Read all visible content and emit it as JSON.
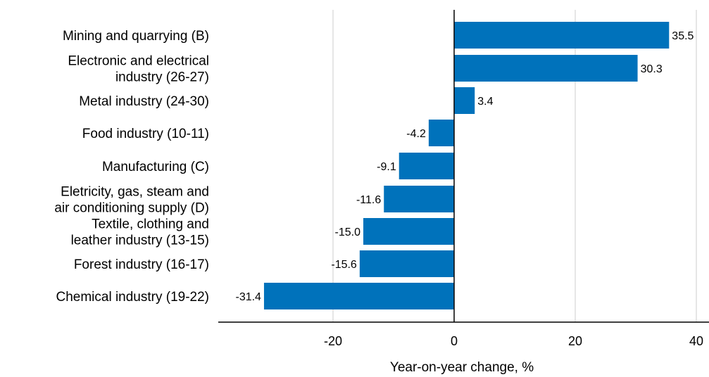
{
  "chart_data": {
    "type": "bar",
    "orientation": "horizontal",
    "categories": [
      [
        "Mining and quarrying (B)"
      ],
      [
        "Electronic and electrical",
        "industry (26-27)"
      ],
      [
        "Metal industry (24-30)"
      ],
      [
        "Food industry (10-11)"
      ],
      [
        "Manufacturing (C)"
      ],
      [
        "Eletricity, gas, steam and",
        "air conditioning supply (D)"
      ],
      [
        "Textile, clothing and",
        "leather industry (13-15)"
      ],
      [
        "Forest industry (16-17)"
      ],
      [
        "Chemical industry (19-22)"
      ]
    ],
    "values": [
      35.5,
      30.3,
      3.4,
      -4.2,
      -9.1,
      -11.6,
      -15.0,
      -15.6,
      -31.4
    ],
    "value_labels": [
      "35.5",
      "30.3",
      "3.4",
      "-4.2",
      "-9.1",
      "-11.6",
      "-15.0",
      "-15.6",
      "-31.4"
    ],
    "xlabel": "Year-on-year change, %",
    "xlim": [
      -39,
      40.5
    ],
    "xticks": [
      -20,
      0,
      20,
      40
    ],
    "xtick_labels": [
      "-20",
      "0",
      "20",
      "40"
    ],
    "grid": "vertical",
    "bar_color": "#0072bb"
  }
}
